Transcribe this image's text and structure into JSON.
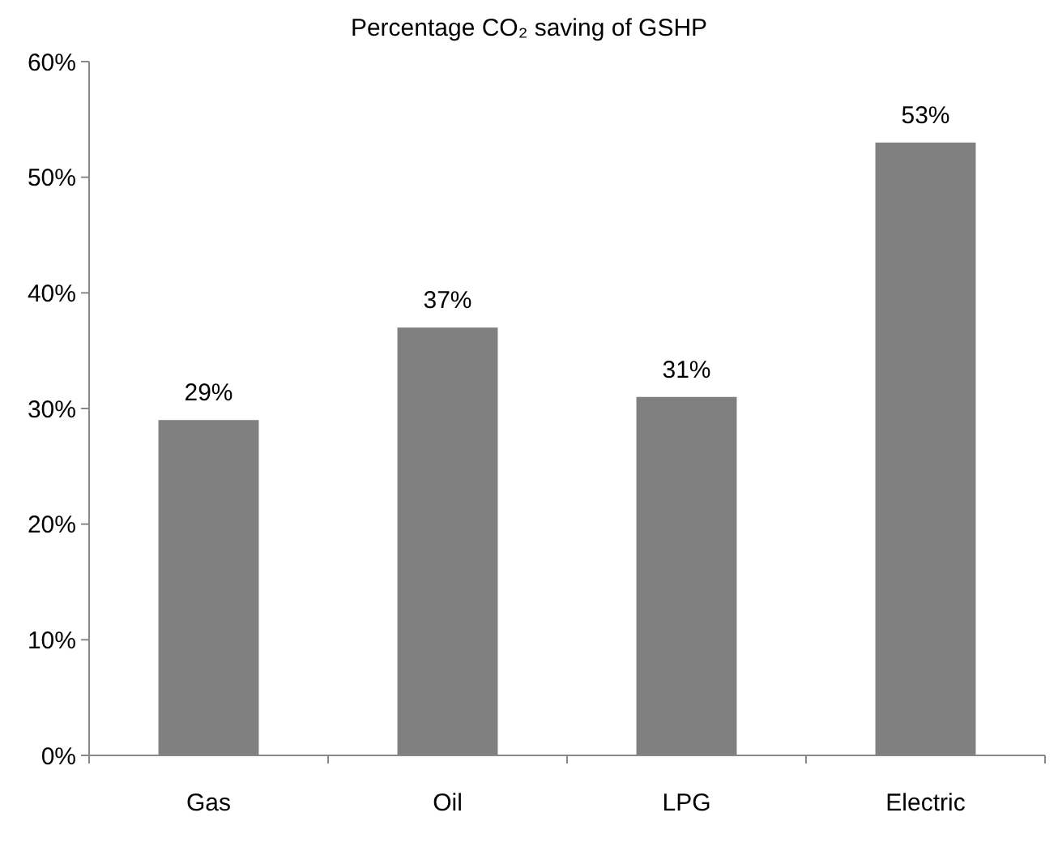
{
  "chart_data": {
    "type": "bar",
    "title": "Percentage CO₂ saving of GSHP",
    "categories": [
      "Gas",
      "Oil",
      "LPG",
      "Electric"
    ],
    "values": [
      29,
      37,
      31,
      53
    ],
    "value_labels": [
      "29%",
      "37%",
      "31%",
      "53%"
    ],
    "color": "#808080",
    "ylim": [
      0,
      60
    ],
    "yticks": [
      {
        "value": 0,
        "label": "0%"
      },
      {
        "value": 10,
        "label": "10%"
      },
      {
        "value": 20,
        "label": "20%"
      },
      {
        "value": 30,
        "label": "30%"
      },
      {
        "value": 40,
        "label": "40%"
      },
      {
        "value": 50,
        "label": "50%"
      },
      {
        "value": 60,
        "label": "60%"
      }
    ],
    "grid": false
  }
}
